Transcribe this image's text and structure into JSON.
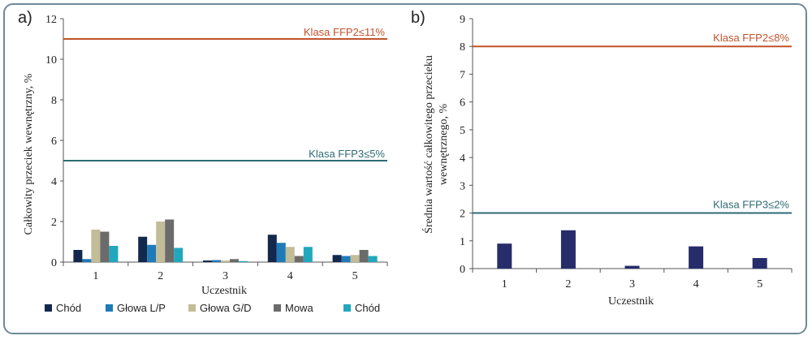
{
  "colors": {
    "axis": "#555555",
    "threshold_ffp2": "#c0532c",
    "threshold_ffp3": "#2e6b73",
    "frame": "#6e8a96"
  },
  "chart_data": [
    {
      "panel_label": "a)",
      "type": "bar",
      "xlabel": "Uczestnik",
      "ylabel": "Całkowity przeciek wewnętrzny, %",
      "ylim": [
        0,
        12
      ],
      "yticks": [
        "0",
        "2",
        "4",
        "6",
        "8",
        "10",
        "12"
      ],
      "categories": [
        "1",
        "2",
        "3",
        "4",
        "5"
      ],
      "series": [
        {
          "name": "Chód",
          "color": "#13284d",
          "values": [
            0.6,
            1.25,
            0.08,
            1.35,
            0.35
          ]
        },
        {
          "name": "Głowa L/P",
          "color": "#1f7ab8",
          "values": [
            0.15,
            0.85,
            0.1,
            0.95,
            0.3
          ]
        },
        {
          "name": "Głowa G/D",
          "color": "#c2bc98",
          "values": [
            1.6,
            2.0,
            0.08,
            0.75,
            0.35
          ]
        },
        {
          "name": "Mowa",
          "color": "#6b6b6b",
          "values": [
            1.5,
            2.1,
            0.15,
            0.3,
            0.6
          ]
        },
        {
          "name": "Chód",
          "color": "#22a7bd",
          "values": [
            0.8,
            0.7,
            0.05,
            0.75,
            0.3
          ]
        }
      ],
      "thresholds": [
        {
          "label": "Klasa FFP2≤11%",
          "value": 11,
          "color": "#c0532c"
        },
        {
          "label": "Klasa FFP3≤5%",
          "value": 5,
          "color": "#2e6b73"
        }
      ],
      "legend_position": "bottom"
    },
    {
      "panel_label": "b)",
      "type": "bar",
      "xlabel": "Uczestnik",
      "ylabel_lines": [
        "Średnia wartość całkowitego przecieku",
        "wewnętrznego, %"
      ],
      "ylim": [
        0,
        9
      ],
      "yticks": [
        "0",
        "1",
        "2",
        "3",
        "4",
        "5",
        "6",
        "7",
        "8",
        "9"
      ],
      "categories": [
        "1",
        "2",
        "3",
        "4",
        "5"
      ],
      "series": [
        {
          "color": "#272c6b",
          "values": [
            0.9,
            1.38,
            0.1,
            0.8,
            0.38
          ]
        }
      ],
      "thresholds": [
        {
          "label": "Klasa FFP2≤8%",
          "value": 8,
          "color": "#c0532c"
        },
        {
          "label": "Klasa FFP3≤2%",
          "value": 2,
          "color": "#2e6b73"
        }
      ]
    }
  ]
}
